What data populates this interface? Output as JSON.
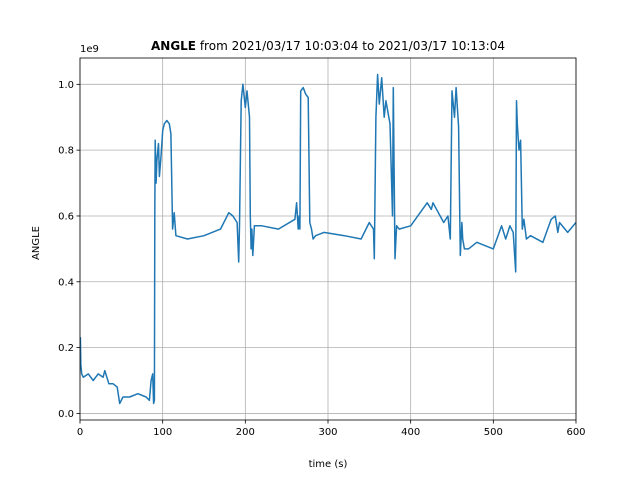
{
  "chart_data": {
    "type": "line",
    "title_bold": "ANGLE",
    "title_rest": " from 2021/03/17 10:03:04 to 2021/03/17 10:13:04",
    "xlabel": "time (s)",
    "ylabel": "ANGLE",
    "y_offset_text": "1e9",
    "xlim": [
      0,
      600
    ],
    "ylim": [
      -0.02,
      1.08
    ],
    "x_ticks": [
      0,
      100,
      200,
      300,
      400,
      500,
      600
    ],
    "x_tick_labels": [
      "0",
      "100",
      "200",
      "300",
      "400",
      "500",
      "600"
    ],
    "y_ticks": [
      0.0,
      0.2,
      0.4,
      0.6,
      0.8,
      1.0
    ],
    "y_tick_labels": [
      "0.0",
      "0.2",
      "0.4",
      "0.6",
      "0.8",
      "1.0"
    ],
    "grid": true,
    "line_color": "#1f77b4",
    "series": [
      {
        "x": [
          0,
          0.5,
          1,
          2,
          4,
          10,
          16,
          22,
          28,
          30,
          35,
          40,
          45,
          48,
          52,
          60,
          70,
          80,
          84,
          86,
          88,
          89,
          90,
          90.5,
          91,
          92,
          93,
          95,
          96,
          98,
          100,
          102,
          105,
          108,
          110,
          112,
          114,
          116,
          130,
          150,
          170,
          180,
          185,
          190,
          192,
          193,
          195,
          197,
          200,
          202,
          205,
          206,
          207,
          208,
          209,
          211,
          220,
          240,
          260,
          262,
          264,
          265,
          266,
          267,
          270,
          273,
          276,
          278,
          280,
          282,
          285,
          295,
          320,
          340,
          350,
          355,
          356,
          358,
          360,
          362,
          365,
          368,
          370,
          375,
          378,
          379,
          381,
          383,
          386,
          400,
          420,
          425,
          427,
          440,
          445,
          448,
          450,
          453,
          455,
          458,
          460,
          462,
          463,
          465,
          470,
          480,
          500,
          510,
          515,
          520,
          524,
          527,
          528,
          529,
          531,
          533,
          535,
          537,
          540,
          545,
          560,
          570,
          575,
          578,
          580,
          590,
          600
        ],
        "values": [
          0.2,
          0.23,
          0.15,
          0.12,
          0.11,
          0.12,
          0.1,
          0.12,
          0.11,
          0.13,
          0.09,
          0.09,
          0.08,
          0.03,
          0.05,
          0.05,
          0.06,
          0.05,
          0.04,
          0.1,
          0.12,
          0.03,
          0.04,
          0.6,
          0.83,
          0.7,
          0.77,
          0.82,
          0.72,
          0.78,
          0.86,
          0.88,
          0.89,
          0.88,
          0.85,
          0.56,
          0.61,
          0.54,
          0.53,
          0.54,
          0.56,
          0.61,
          0.6,
          0.58,
          0.46,
          0.57,
          0.95,
          1.0,
          0.93,
          0.98,
          0.9,
          0.6,
          0.5,
          0.56,
          0.48,
          0.57,
          0.57,
          0.56,
          0.59,
          0.64,
          0.56,
          0.6,
          0.56,
          0.98,
          0.99,
          0.97,
          0.96,
          0.58,
          0.56,
          0.53,
          0.54,
          0.55,
          0.54,
          0.53,
          0.58,
          0.56,
          0.47,
          0.9,
          1.03,
          0.94,
          1.02,
          0.9,
          0.95,
          0.88,
          0.6,
          0.99,
          0.47,
          0.57,
          0.56,
          0.57,
          0.64,
          0.62,
          0.64,
          0.58,
          0.6,
          0.53,
          0.98,
          0.9,
          0.99,
          0.87,
          0.48,
          0.58,
          0.53,
          0.5,
          0.5,
          0.52,
          0.5,
          0.57,
          0.53,
          0.57,
          0.55,
          0.43,
          0.95,
          0.88,
          0.8,
          0.83,
          0.56,
          0.59,
          0.53,
          0.54,
          0.52,
          0.59,
          0.6,
          0.55,
          0.58,
          0.55,
          0.58
        ]
      }
    ]
  }
}
